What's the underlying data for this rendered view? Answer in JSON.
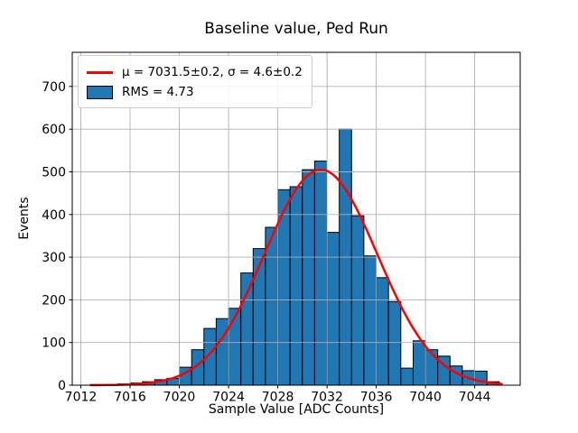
{
  "figure": {
    "title": "Baseline value, Ped Run",
    "xlabel": "Sample Value [ADC Counts]",
    "ylabel": "Events"
  },
  "legend": {
    "entries": [
      {
        "swatch": "line",
        "label": "μ = 7031.5±0.2, σ = 4.6±0.2"
      },
      {
        "swatch": "patch",
        "label": "RMS = 4.73"
      }
    ]
  },
  "chart_data": {
    "type": "bar",
    "subtype": "histogram-with-gaussian-fit",
    "title": "Baseline value, Ped Run",
    "xlabel": "Sample Value [ADC Counts]",
    "ylabel": "Events",
    "bin_width": 1,
    "bin_left_edges": [
      7014,
      7015,
      7016,
      7017,
      7018,
      7019,
      7020,
      7021,
      7022,
      7023,
      7024,
      7025,
      7026,
      7027,
      7028,
      7029,
      7030,
      7031,
      7032,
      7033,
      7034,
      7035,
      7036,
      7037,
      7038,
      7039,
      7040,
      7041,
      7042,
      7043,
      7044,
      7045
    ],
    "values": [
      2,
      3,
      5,
      8,
      13,
      16,
      42,
      83,
      133,
      156,
      180,
      263,
      320,
      370,
      458,
      465,
      505,
      525,
      358,
      600,
      397,
      303,
      252,
      196,
      40,
      104,
      83,
      68,
      45,
      34,
      33,
      8
    ],
    "fit": {
      "type": "gaussian",
      "amplitude": 505,
      "mu": 7031.5,
      "mu_err": 0.2,
      "sigma": 4.6,
      "sigma_err": 0.2,
      "rms": 4.73,
      "x_range": [
        7012.8,
        7046.2
      ]
    },
    "xlim": [
      7011.3,
      7047.7
    ],
    "ylim": [
      0,
      780
    ],
    "xticks": [
      7012,
      7016,
      7020,
      7024,
      7028,
      7032,
      7036,
      7040,
      7044
    ],
    "yticks": [
      0,
      100,
      200,
      300,
      400,
      500,
      600,
      700
    ],
    "grid": true,
    "legend_position": "upper-left",
    "colors": {
      "bar_fill": "#1f77b4",
      "bar_edge": "#000000",
      "fit_line": "#ff0000",
      "grid": "#b0b0b0",
      "frame": "#000000",
      "background": "#ffffff"
    }
  }
}
